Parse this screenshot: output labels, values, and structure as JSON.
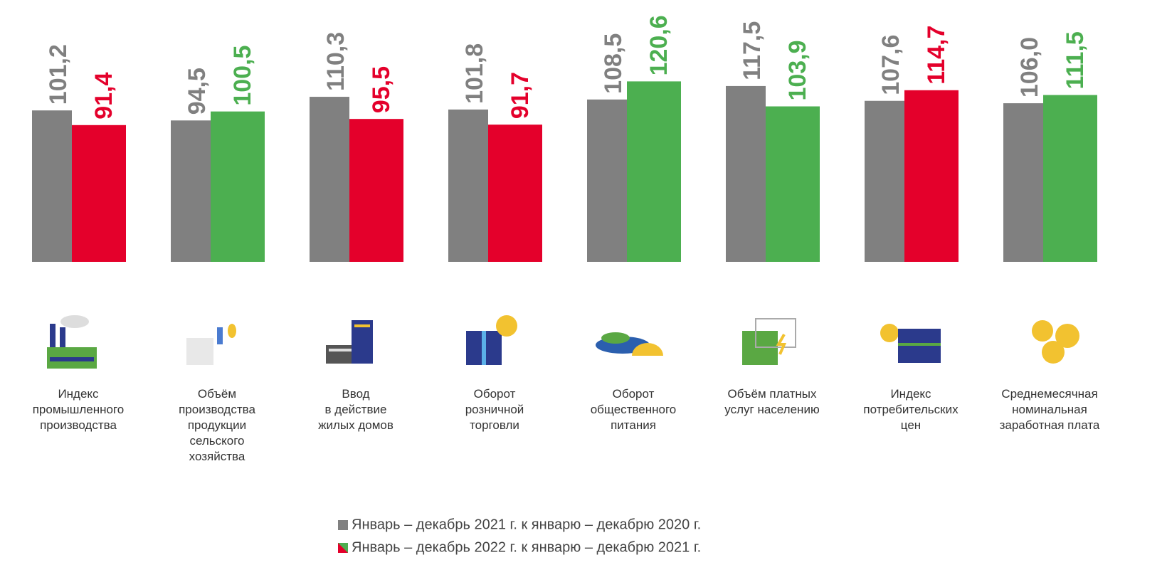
{
  "chart_data": {
    "type": "bar",
    "categories": [
      "Индекс\nпромышленного\nпроизводства",
      "Объём\nпроизводства\nпродукции\nсельского\nхозяйства",
      "Ввод\nв действие\nжилых домов",
      "Оборот\nрозничной\nторговли",
      "Оборот\nобщественного\nпитания",
      "Объём платных\nуслуг населению",
      "Индекс\nпотребительских\nцен",
      "Среднемесячная\nноминальная\nзаработная плата"
    ],
    "series": [
      {
        "name": "Январь – декабрь 2021 г. к январю – декабрю 2020 г.",
        "color": "#808080",
        "values": [
          101.2,
          94.5,
          110.3,
          101.8,
          108.5,
          117.5,
          107.6,
          106.0
        ],
        "value_labels": [
          "101,2",
          "94,5",
          "110,3",
          "101,8",
          "108,5",
          "117,5",
          "107,6",
          "106,0"
        ]
      },
      {
        "name": "Январь – декабрь 2022 г. к январю – декабрю 2021 г.",
        "colors": [
          "#e4002b",
          "#4caf50",
          "#e4002b",
          "#e4002b",
          "#4caf50",
          "#4caf50",
          "#e4002b",
          "#4caf50"
        ],
        "values": [
          91.4,
          100.5,
          95.5,
          91.7,
          120.6,
          103.9,
          114.7,
          111.5
        ],
        "value_labels": [
          "91,4",
          "100,5",
          "95,5",
          "91,7",
          "120,6",
          "103,9",
          "114,7",
          "111,5"
        ]
      }
    ],
    "ylim": [
      0,
      175
    ]
  }
}
